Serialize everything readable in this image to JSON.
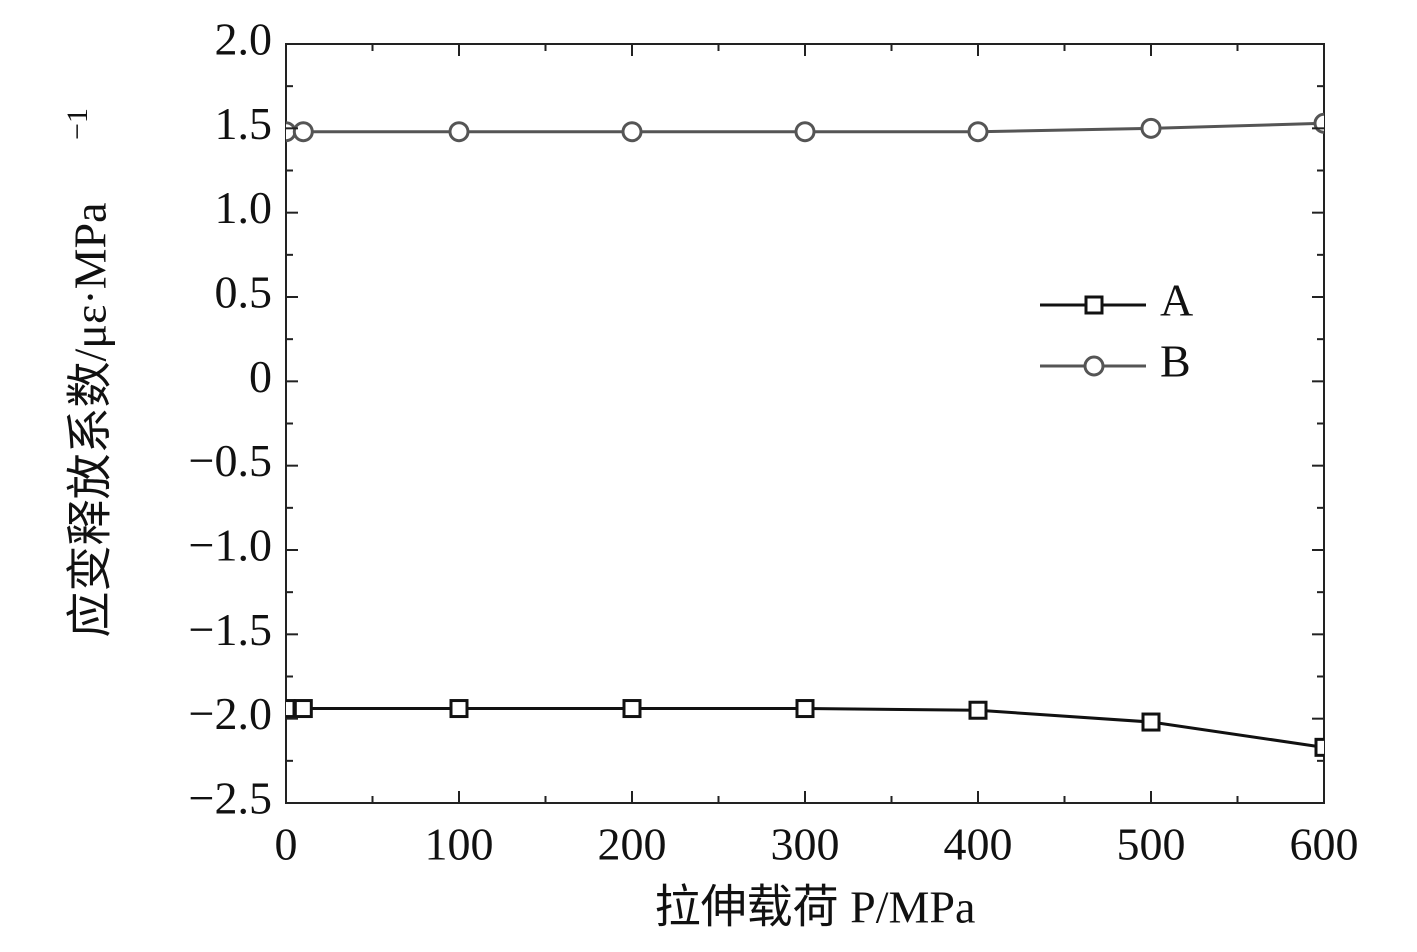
{
  "chart_data": {
    "type": "line",
    "xlabel": "拉伸载荷 P/MPa",
    "ylabel": "应变释放系数/με·MPa",
    "ylabel_sup": "−1",
    "x": [
      0,
      10,
      100,
      200,
      300,
      400,
      500,
      600
    ],
    "series": [
      {
        "name": "A",
        "color": "#111111",
        "marker": "square",
        "values": [
          -1.94,
          -1.94,
          -1.94,
          -1.94,
          -1.94,
          -1.95,
          -2.02,
          -2.17
        ]
      },
      {
        "name": "B",
        "color": "#555555",
        "marker": "circle",
        "values": [
          1.48,
          1.48,
          1.48,
          1.48,
          1.48,
          1.48,
          1.5,
          1.53
        ]
      }
    ],
    "xlim": [
      0,
      600
    ],
    "xticks": [
      0,
      100,
      200,
      300,
      400,
      500,
      600
    ],
    "ylim": [
      -2.5,
      2.0
    ],
    "yticks": [
      {
        "value": -2.5,
        "label": "−2.5"
      },
      {
        "value": -2.0,
        "label": "−2.0"
      },
      {
        "value": -1.5,
        "label": "−1.5"
      },
      {
        "value": -1.0,
        "label": "−1.0"
      },
      {
        "value": -0.5,
        "label": "−0.5"
      },
      0,
      {
        "value": 0.5,
        "label": "0.5"
      },
      {
        "value": 1.0,
        "label": "1.0"
      },
      {
        "value": 1.5,
        "label": "1.5"
      },
      {
        "value": 2.0,
        "label": "2.0"
      }
    ],
    "grid": false,
    "legend": "right"
  }
}
